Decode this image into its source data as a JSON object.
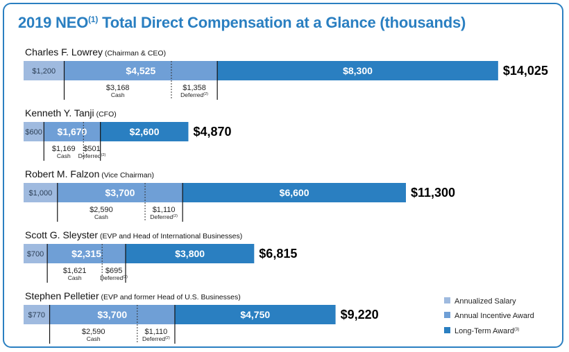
{
  "title": {
    "main": "2019 NEO",
    "sup": "(1)",
    "rest": " Total Direct Compensation at a Glance (thousands)"
  },
  "colors": {
    "salary": "#9fbadf",
    "incentive": "#6f9fd6",
    "longterm": "#2a7fc1",
    "frame": "#2a7fc1"
  },
  "chart_data": {
    "type": "bar",
    "orientation": "horizontal",
    "stacked": true,
    "categories": [
      "Charles F. Lowrey",
      "Kenneth Y. Tanji",
      "Robert M. Falzon",
      "Scott G. Sleyster",
      "Stephen Pelletier"
    ],
    "roles": [
      "(Chairman & CEO)",
      "(CFO)",
      "(Vice Chairman)",
      "(EVP and Head of International Businesses)",
      "(EVP and former Head of U.S. Businesses)"
    ],
    "series": [
      {
        "name": "Annualized Salary",
        "values": [
          1200,
          600,
          1000,
          700,
          770
        ],
        "labels": [
          "$1,200",
          "$600",
          "$1,000",
          "$700",
          "$770"
        ]
      },
      {
        "name": "Annual Incentive Award",
        "values": [
          4525,
          1670,
          3700,
          2315,
          3700
        ],
        "labels": [
          "$4,525",
          "$1,670",
          "$3,700",
          "$2,315",
          "$3,700"
        ]
      },
      {
        "name": "Long-Term Award",
        "name_sup": "(3)",
        "values": [
          8300,
          2600,
          6600,
          3800,
          4750
        ],
        "labels": [
          "$8,300",
          "$2,600",
          "$6,600",
          "$3,800",
          "$4,750"
        ]
      }
    ],
    "totals": [
      14025,
      4870,
      11300,
      6815,
      9220
    ],
    "total_labels": [
      "$14,025",
      "$4,870",
      "$11,300",
      "$6,815",
      "$9,220"
    ],
    "incentive_split": {
      "cash": [
        3168,
        1169,
        2590,
        1621,
        2590
      ],
      "cash_labels": [
        "$3,168",
        "$1,169",
        "$2,590",
        "$1,621",
        "$2,590"
      ],
      "deferred": [
        1358,
        501,
        1110,
        695,
        1110
      ],
      "deferred_labels": [
        "$1,358",
        "$501",
        "$1,110",
        "$695",
        "$1,110"
      ],
      "cash_word": "Cash",
      "deferred_word": "Deferred",
      "deferred_sup": "(2)"
    },
    "legend_position": "bottom-right"
  }
}
